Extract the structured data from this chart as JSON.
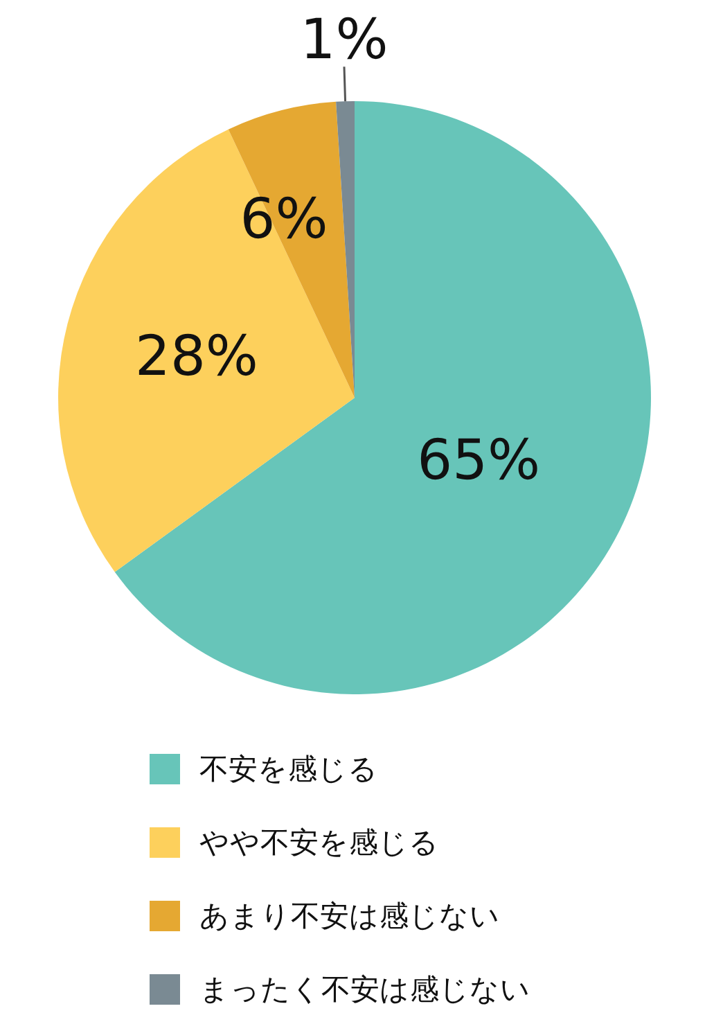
{
  "chart_data": {
    "type": "pie",
    "categories": [
      "不安を感じる",
      "やや不安を感じる",
      "あまり不安は感じない",
      "まったく不安は感じない"
    ],
    "values": [
      65,
      28,
      6,
      1
    ],
    "colors": [
      "#67c5b9",
      "#fdd05c",
      "#e5a832",
      "#7a8a93"
    ],
    "value_labels": [
      "65%",
      "28%",
      "6%",
      "1%"
    ],
    "legend": "bottom"
  }
}
